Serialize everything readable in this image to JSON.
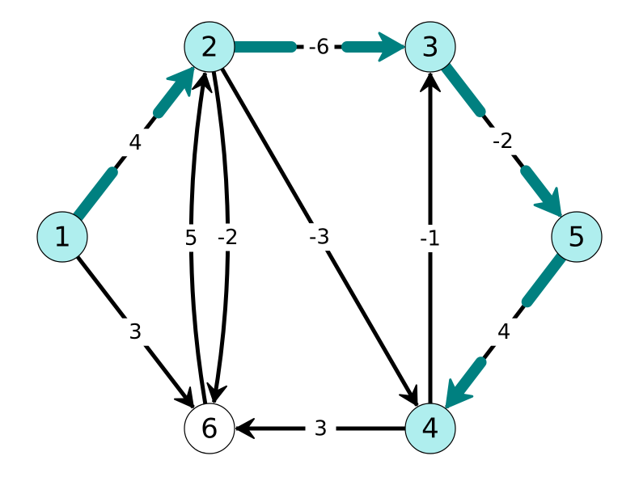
{
  "colors": {
    "highlight_node": "#afeeee",
    "plain_node": "#ffffff",
    "highlight_edge": "#008080",
    "plain_edge": "#000000"
  },
  "nodes": [
    {
      "id": "1",
      "label": "1",
      "highlight": true
    },
    {
      "id": "2",
      "label": "2",
      "highlight": true
    },
    {
      "id": "3",
      "label": "3",
      "highlight": true
    },
    {
      "id": "4",
      "label": "4",
      "highlight": true
    },
    {
      "id": "5",
      "label": "5",
      "highlight": true
    },
    {
      "id": "6",
      "label": "6",
      "highlight": false
    }
  ],
  "edges": [
    {
      "from": "1",
      "to": "2",
      "weight": "4",
      "highlight": true
    },
    {
      "from": "1",
      "to": "6",
      "weight": "3",
      "highlight": false
    },
    {
      "from": "2",
      "to": "3",
      "weight": "-6",
      "highlight": true
    },
    {
      "from": "2",
      "to": "6",
      "weight": "-2",
      "highlight": false
    },
    {
      "from": "6",
      "to": "2",
      "weight": "5",
      "highlight": false
    },
    {
      "from": "2",
      "to": "4",
      "weight": "-3",
      "highlight": false
    },
    {
      "from": "3",
      "to": "5",
      "weight": "-2",
      "highlight": true
    },
    {
      "from": "4",
      "to": "3",
      "weight": "-1",
      "highlight": false
    },
    {
      "from": "5",
      "to": "4",
      "weight": "4",
      "highlight": true
    },
    {
      "from": "4",
      "to": "6",
      "weight": "3",
      "highlight": false
    }
  ]
}
